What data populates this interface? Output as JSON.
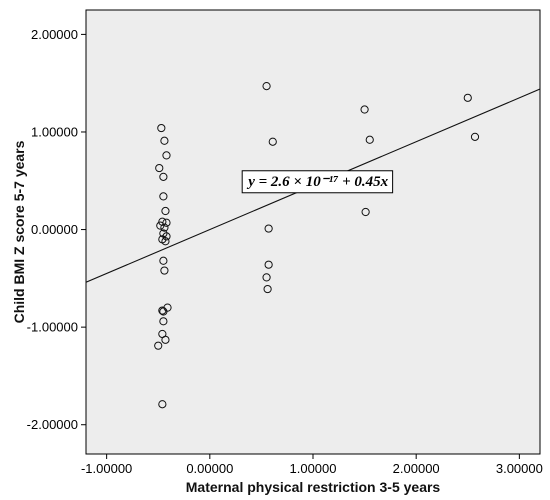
{
  "chart_data": {
    "type": "scatter",
    "xlabel": "Maternal physical restriction 3-5 years",
    "ylabel": "Child BMI Z score 5-7 years",
    "xlim": [
      -1.2,
      3.2
    ],
    "ylim": [
      -2.3,
      2.25
    ],
    "x_ticks": [
      -1.0,
      0.0,
      1.0,
      2.0,
      3.0
    ],
    "x_tick_labels": [
      "-1.00000",
      "0.00000",
      "1.00000",
      "2.00000",
      "3.00000"
    ],
    "y_ticks": [
      -2.0,
      -1.0,
      0.0,
      1.0,
      2.0
    ],
    "y_tick_labels": [
      "-2.00000",
      "-1.00000",
      "0.00000",
      "1.00000",
      "2.00000"
    ],
    "grid": false,
    "background_color": "#ededed",
    "marker": "open-circle",
    "points": [
      {
        "x": -0.47,
        "y": 1.04
      },
      {
        "x": -0.44,
        "y": 0.91
      },
      {
        "x": -0.42,
        "y": 0.76
      },
      {
        "x": -0.49,
        "y": 0.63
      },
      {
        "x": -0.45,
        "y": 0.54
      },
      {
        "x": -0.45,
        "y": 0.34
      },
      {
        "x": -0.43,
        "y": 0.19
      },
      {
        "x": -0.46,
        "y": 0.08
      },
      {
        "x": -0.42,
        "y": 0.07
      },
      {
        "x": -0.48,
        "y": 0.04
      },
      {
        "x": -0.44,
        "y": 0.02
      },
      {
        "x": -0.45,
        "y": -0.04
      },
      {
        "x": -0.42,
        "y": -0.07
      },
      {
        "x": -0.46,
        "y": -0.1
      },
      {
        "x": -0.43,
        "y": -0.12
      },
      {
        "x": -0.45,
        "y": -0.32
      },
      {
        "x": -0.44,
        "y": -0.42
      },
      {
        "x": -0.41,
        "y": -0.8
      },
      {
        "x": -0.46,
        "y": -0.83
      },
      {
        "x": -0.45,
        "y": -0.84
      },
      {
        "x": -0.45,
        "y": -0.94
      },
      {
        "x": -0.46,
        "y": -1.07
      },
      {
        "x": -0.43,
        "y": -1.13
      },
      {
        "x": -0.5,
        "y": -1.19
      },
      {
        "x": -0.46,
        "y": -1.79
      },
      {
        "x": 0.55,
        "y": 1.47
      },
      {
        "x": 0.61,
        "y": 0.9
      },
      {
        "x": 0.57,
        "y": 0.01
      },
      {
        "x": 0.57,
        "y": -0.36
      },
      {
        "x": 0.55,
        "y": -0.49
      },
      {
        "x": 0.56,
        "y": -0.61
      },
      {
        "x": 1.5,
        "y": 1.23
      },
      {
        "x": 1.55,
        "y": 0.92
      },
      {
        "x": 1.51,
        "y": 0.18
      },
      {
        "x": 2.5,
        "y": 1.35
      },
      {
        "x": 2.57,
        "y": 0.95
      }
    ],
    "fit_line": {
      "intercept": 0.0,
      "slope": 0.45
    },
    "annotation": {
      "text": "y = 2.6 × 10⁻¹⁷ + 0.45x",
      "x": 1.05,
      "y": 0.5
    }
  }
}
